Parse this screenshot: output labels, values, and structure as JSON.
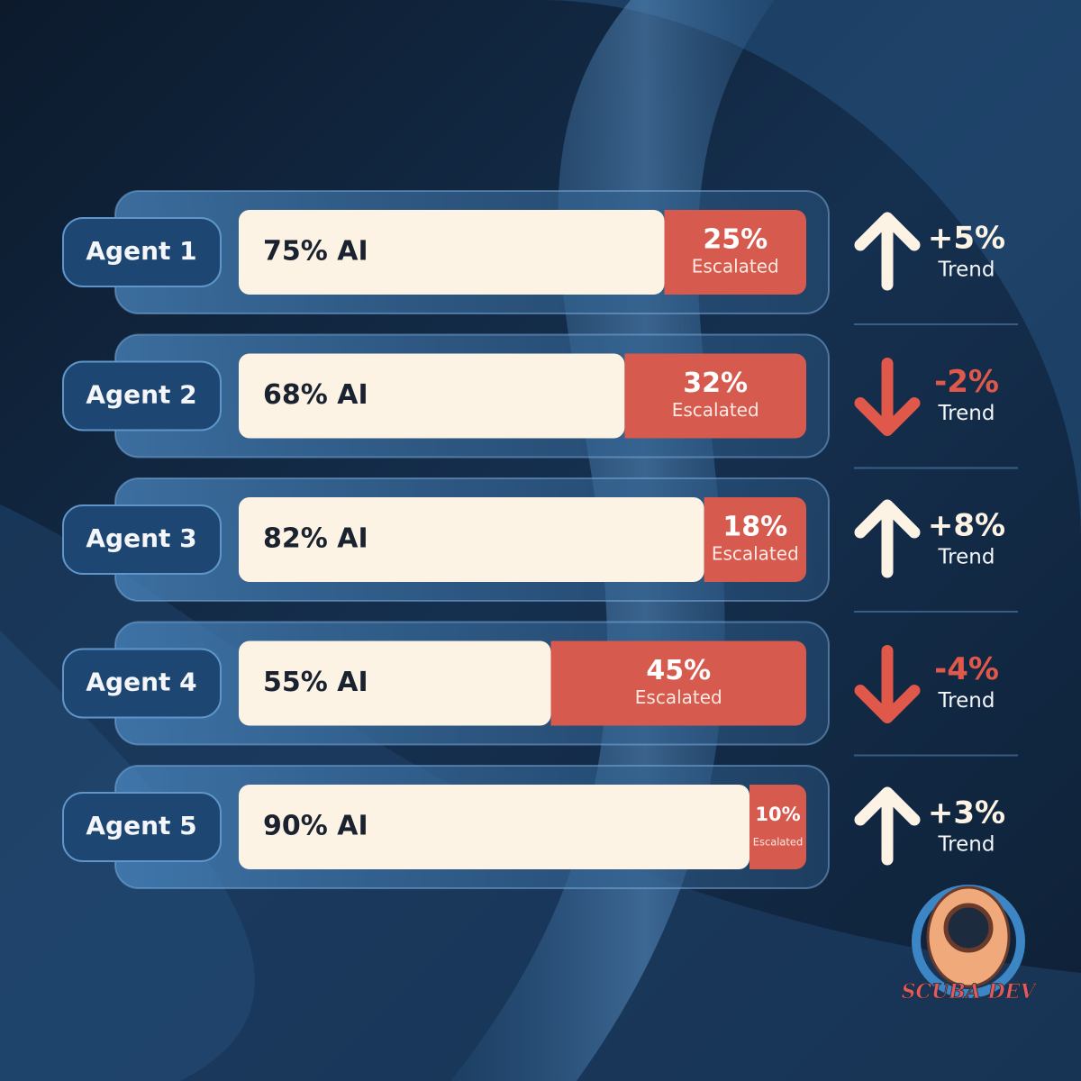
{
  "chart_data": {
    "type": "stacked-bar",
    "categories": [
      "Agent 1",
      "Agent 2",
      "Agent 3",
      "Agent 4",
      "Agent 5"
    ],
    "xlim": [
      0,
      100
    ],
    "series": [
      {
        "color": "#fdf3e4",
        "values": [
          75,
          68,
          82,
          55,
          90
        ],
        "value_labels": [
          "75% AI",
          "68% AI",
          "82% AI",
          "55% AI",
          "90% AI"
        ]
      },
      {
        "name": "Escalated",
        "color": "#d65a4e",
        "values": [
          25,
          32,
          18,
          45,
          10
        ],
        "value_labels": [
          "25%",
          "32%",
          "18%",
          "45%",
          "10%"
        ]
      }
    ],
    "trend": {
      "label": "Trend",
      "values": [
        5,
        -2,
        8,
        -4,
        3
      ],
      "value_labels": [
        "+5%",
        "-2%",
        "+8%",
        "-4%",
        "+3%"
      ],
      "up_color": "#fdf3e4",
      "down_color": "#e0584a"
    }
  },
  "logo": "SCUBA DEV"
}
